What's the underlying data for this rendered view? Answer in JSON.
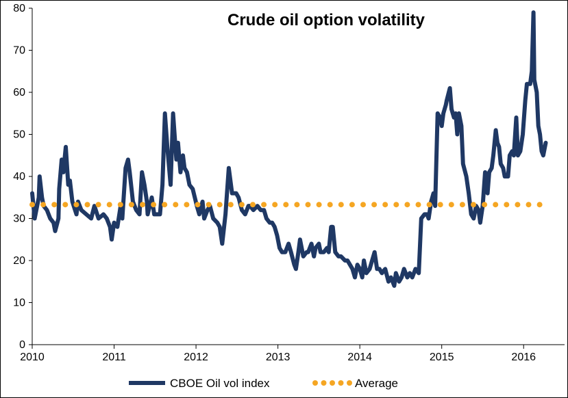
{
  "chart_data": {
    "type": "line",
    "title": "Crude oil option volatility",
    "xlabel": "",
    "ylabel": "",
    "xlim": [
      2010,
      2016.5
    ],
    "ylim": [
      0,
      80
    ],
    "x_ticks": [
      "2010",
      "2011",
      "2012",
      "2013",
      "2014",
      "2015",
      "2016"
    ],
    "y_ticks": [
      "0",
      "10",
      "20",
      "30",
      "40",
      "50",
      "60",
      "70",
      "80"
    ],
    "grid": false,
    "legend": "bottom",
    "series": [
      {
        "name": "CBOE Oil vol index",
        "color": "#1F3864",
        "style": "solid",
        "x": [
          2010.0,
          2010.03,
          2010.08,
          2010.09,
          2010.12,
          2010.14,
          2010.18,
          2010.22,
          2010.26,
          2010.28,
          2010.32,
          2010.33,
          2010.36,
          2010.38,
          2010.41,
          2010.44,
          2010.46,
          2010.49,
          2010.54,
          2010.56,
          2010.6,
          2010.66,
          2010.72,
          2010.76,
          2010.81,
          2010.87,
          2010.91,
          2010.95,
          2010.97,
          2011.0,
          2011.04,
          2011.08,
          2011.1,
          2011.14,
          2011.17,
          2011.19,
          2011.23,
          2011.27,
          2011.31,
          2011.34,
          2011.37,
          2011.4,
          2011.41,
          2011.46,
          2011.49,
          2011.56,
          2011.59,
          2011.62,
          2011.65,
          2011.69,
          2011.72,
          2011.76,
          2011.78,
          2011.81,
          2011.84,
          2011.86,
          2011.89,
          2011.92,
          2011.96,
          2012.01,
          2012.04,
          2012.08,
          2012.1,
          2012.14,
          2012.17,
          2012.21,
          2012.26,
          2012.29,
          2012.32,
          2012.36,
          2012.4,
          2012.44,
          2012.49,
          2012.52,
          2012.56,
          2012.6,
          2012.64,
          2012.66,
          2012.7,
          2012.75,
          2012.79,
          2012.83,
          2012.86,
          2012.9,
          2012.93,
          2012.96,
          2012.99,
          2013.02,
          2013.05,
          2013.09,
          2013.13,
          2013.16,
          2013.2,
          2013.22,
          2013.25,
          2013.27,
          2013.31,
          2013.35,
          2013.37,
          2013.41,
          2013.44,
          2013.46,
          2013.5,
          2013.52,
          2013.56,
          2013.6,
          2013.62,
          2013.65,
          2013.67,
          2013.7,
          2013.74,
          2013.77,
          2013.82,
          2013.85,
          2013.88,
          2013.91,
          2013.94,
          2013.97,
          2014.0,
          2014.03,
          2014.05,
          2014.08,
          2014.12,
          2014.15,
          2014.18,
          2014.21,
          2014.24,
          2014.27,
          2014.31,
          2014.35,
          2014.38,
          2014.42,
          2014.44,
          2014.48,
          2014.51,
          2014.54,
          2014.58,
          2014.61,
          2014.64,
          2014.68,
          2014.72,
          2014.75,
          2014.79,
          2014.82,
          2014.84,
          2014.87,
          2014.9,
          2014.92,
          2014.95,
          2014.98,
          2015.0,
          2015.02,
          2015.05,
          2015.06,
          2015.1,
          2015.12,
          2015.15,
          2015.17,
          2015.19,
          2015.21,
          2015.24,
          2015.26,
          2015.3,
          2015.33,
          2015.36,
          2015.39,
          2015.42,
          2015.45,
          2015.47,
          2015.5,
          2015.53,
          2015.56,
          2015.58,
          2015.61,
          2015.63,
          2015.66,
          2015.68,
          2015.7,
          2015.72,
          2015.75,
          2015.77,
          2015.81,
          2015.83,
          2015.86,
          2015.88,
          2015.91,
          2015.93,
          2015.96,
          2015.99,
          2016.02,
          2016.04,
          2016.08,
          2016.1,
          2016.12,
          2016.13,
          2016.16,
          2016.18,
          2016.2,
          2016.22,
          2016.24,
          2016.27
        ],
        "y": [
          36,
          30,
          35,
          40,
          35,
          33,
          32,
          30,
          29,
          27,
          30,
          37,
          44,
          41,
          47,
          38,
          39,
          34,
          31,
          34,
          32,
          31,
          30,
          33,
          30,
          31,
          30,
          28,
          25,
          29,
          28,
          33,
          30,
          42,
          44,
          41,
          34,
          32,
          31,
          41,
          38,
          34,
          31,
          35,
          31,
          31,
          38,
          55,
          47,
          38,
          55,
          44,
          48,
          41,
          45,
          42,
          41,
          38,
          37,
          33,
          31,
          34,
          30,
          32,
          33,
          30,
          29,
          28,
          24,
          31,
          42,
          36,
          36,
          35,
          32,
          31,
          33,
          33,
          32,
          33,
          32,
          32,
          30,
          29,
          29,
          28,
          26,
          23,
          22,
          22,
          24,
          22,
          19,
          18,
          22,
          25,
          21,
          22,
          22,
          24,
          21,
          23,
          24,
          22,
          22,
          23,
          22,
          28,
          28,
          22,
          21,
          21,
          20,
          20,
          19,
          18,
          16,
          19,
          18,
          16,
          20,
          17,
          18,
          20,
          22,
          18,
          18,
          17,
          18,
          15,
          16,
          14,
          17,
          15,
          16,
          18,
          16,
          17,
          16,
          18,
          17,
          30,
          31,
          31,
          30,
          34,
          36,
          33,
          55,
          54,
          52,
          55,
          57,
          58,
          61,
          56,
          54,
          55,
          50,
          55,
          52,
          43,
          40,
          36,
          31,
          30,
          33,
          32,
          29,
          33,
          41,
          36,
          41,
          42,
          45,
          51,
          48,
          47,
          43,
          42,
          40,
          40,
          45,
          46,
          45,
          54,
          45,
          46,
          50,
          58,
          62,
          62,
          65,
          79,
          63,
          60,
          52,
          50,
          46,
          45,
          48
        ]
      },
      {
        "name": "Average",
        "color": "#F5A623",
        "style": "dotted",
        "x": [
          2010.0,
          2016.27
        ],
        "y": [
          33.3,
          33.3
        ]
      }
    ]
  }
}
